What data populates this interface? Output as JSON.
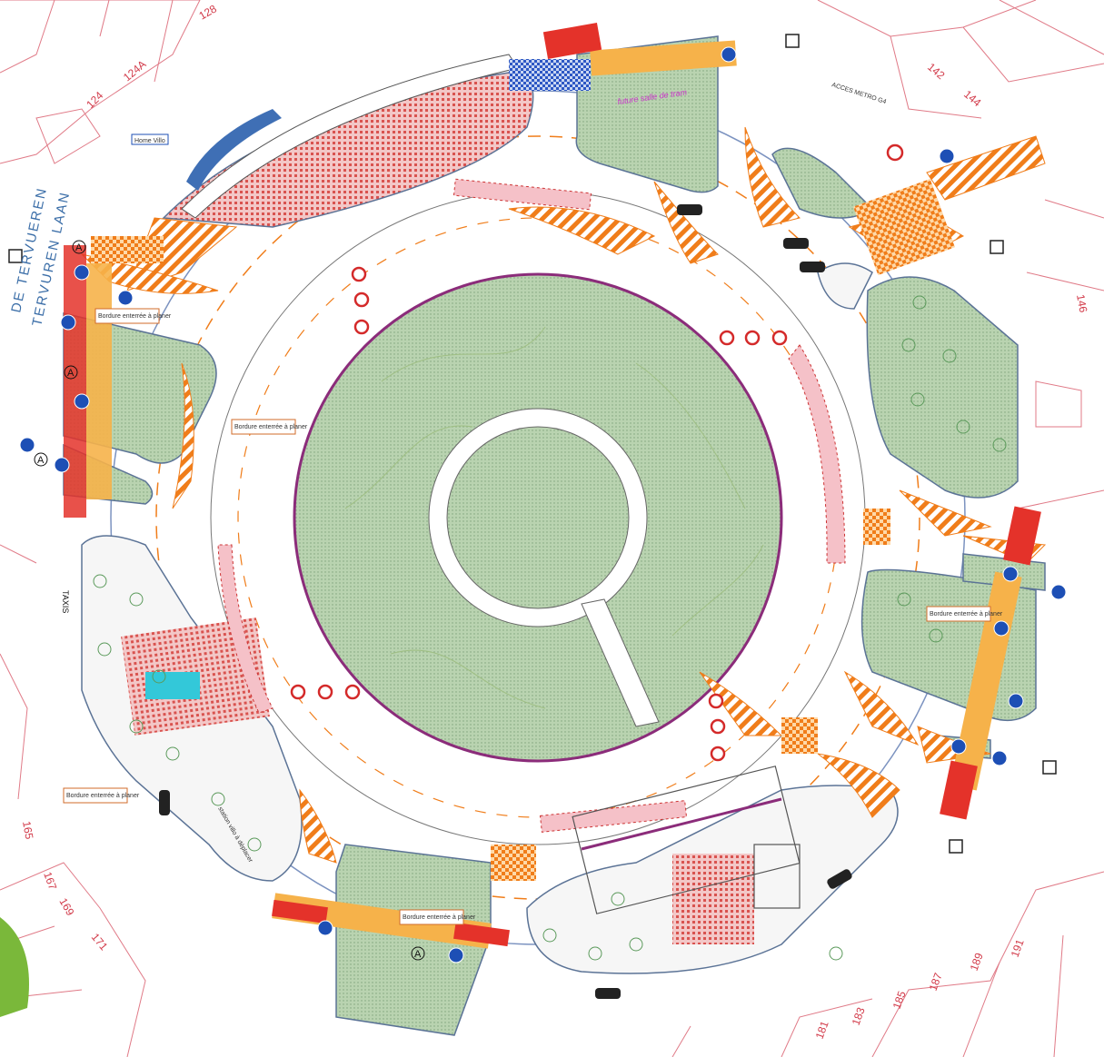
{
  "plot_numbers": [
    "128",
    "124A",
    "124",
    "142",
    "144",
    "146",
    "165",
    "167",
    "169",
    "171",
    "181",
    "183",
    "185",
    "187",
    "189",
    "191"
  ],
  "street_name_1": "DE TERVUEREN",
  "street_name_2": "TERVUREN LAAN",
  "label_home": "Home Villo",
  "label_tram": "future salle de tram",
  "label_metro": "ACCES METRO G4",
  "label_taxis": "TAXIS",
  "label_villo": "station villo à déplacer",
  "label_bordure": "Bordure enterrée à planer",
  "label_a": "A",
  "colors": {
    "green_plaza": "#b9d3b0",
    "orange_hatch": "#f07d1a",
    "red_crossing": "#e4322a",
    "yellow_crossing": "#f6b24a",
    "blue_line": "#3f6fb5",
    "pink_lot": "#e8a0b4",
    "bike_sign": "#1d4fb5"
  },
  "icons": [
    "bike-sign-icon",
    "no-entry-sign-icon",
    "tree-icon",
    "car-icon",
    "north-arrow-icon"
  ]
}
